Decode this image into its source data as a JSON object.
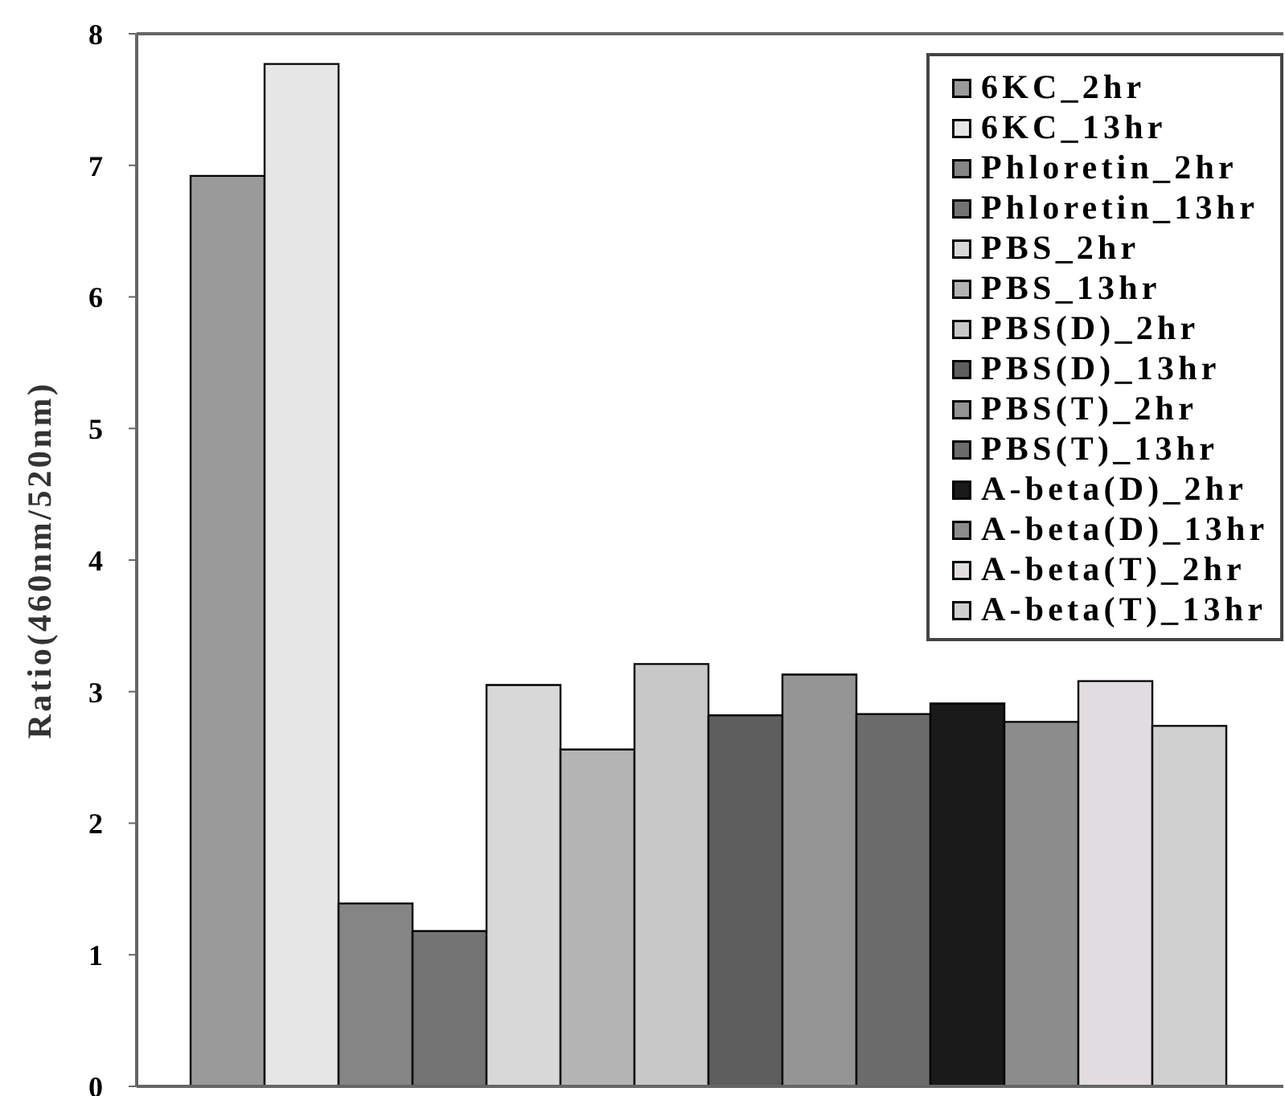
{
  "chart_data": {
    "type": "bar",
    "ylabel": "Ratio(460nm/520nm)",
    "categories": [
      null
    ],
    "series": [
      {
        "name": "6KC_2hr",
        "color": "#9a9a9a",
        "values": [
          6.92
        ]
      },
      {
        "name": "6KC_13hr",
        "color": "#e6e6e6",
        "values": [
          7.77
        ]
      },
      {
        "name": "Phloretin_2hr",
        "color": "#858585",
        "values": [
          1.39
        ]
      },
      {
        "name": "Phloretin_13hr",
        "color": "#737373",
        "values": [
          1.18
        ]
      },
      {
        "name": "PBS_2hr",
        "color": "#d8d8d8",
        "values": [
          3.05
        ]
      },
      {
        "name": "PBS_13hr",
        "color": "#b4b4b4",
        "values": [
          2.56
        ]
      },
      {
        "name": "PBS(D)_2hr",
        "color": "#c8c8c8",
        "values": [
          3.21
        ]
      },
      {
        "name": "PBS(D)_13hr",
        "color": "#5e5e5e",
        "values": [
          2.82
        ]
      },
      {
        "name": "PBS(T)_2hr",
        "color": "#949494",
        "values": [
          3.13
        ]
      },
      {
        "name": "PBS(T)_13hr",
        "color": "#6c6c6c",
        "values": [
          2.83
        ]
      },
      {
        "name": "A-beta(D)_2hr",
        "color": "#1a1a1a",
        "values": [
          2.91
        ]
      },
      {
        "name": "A-beta(D)_13hr",
        "color": "#8c8c8c",
        "values": [
          2.77
        ]
      },
      {
        "name": "A-beta(T)_2hr",
        "color": "#e0dce0",
        "values": [
          3.08
        ]
      },
      {
        "name": "A-beta(T)_13hr",
        "color": "#d0d0d0",
        "values": [
          2.74
        ]
      }
    ],
    "ylim": [
      0,
      8
    ],
    "yticks": [
      0,
      1,
      2,
      3,
      4,
      5,
      6,
      7,
      8
    ],
    "legend": "top right",
    "tick_labels": "y"
  }
}
